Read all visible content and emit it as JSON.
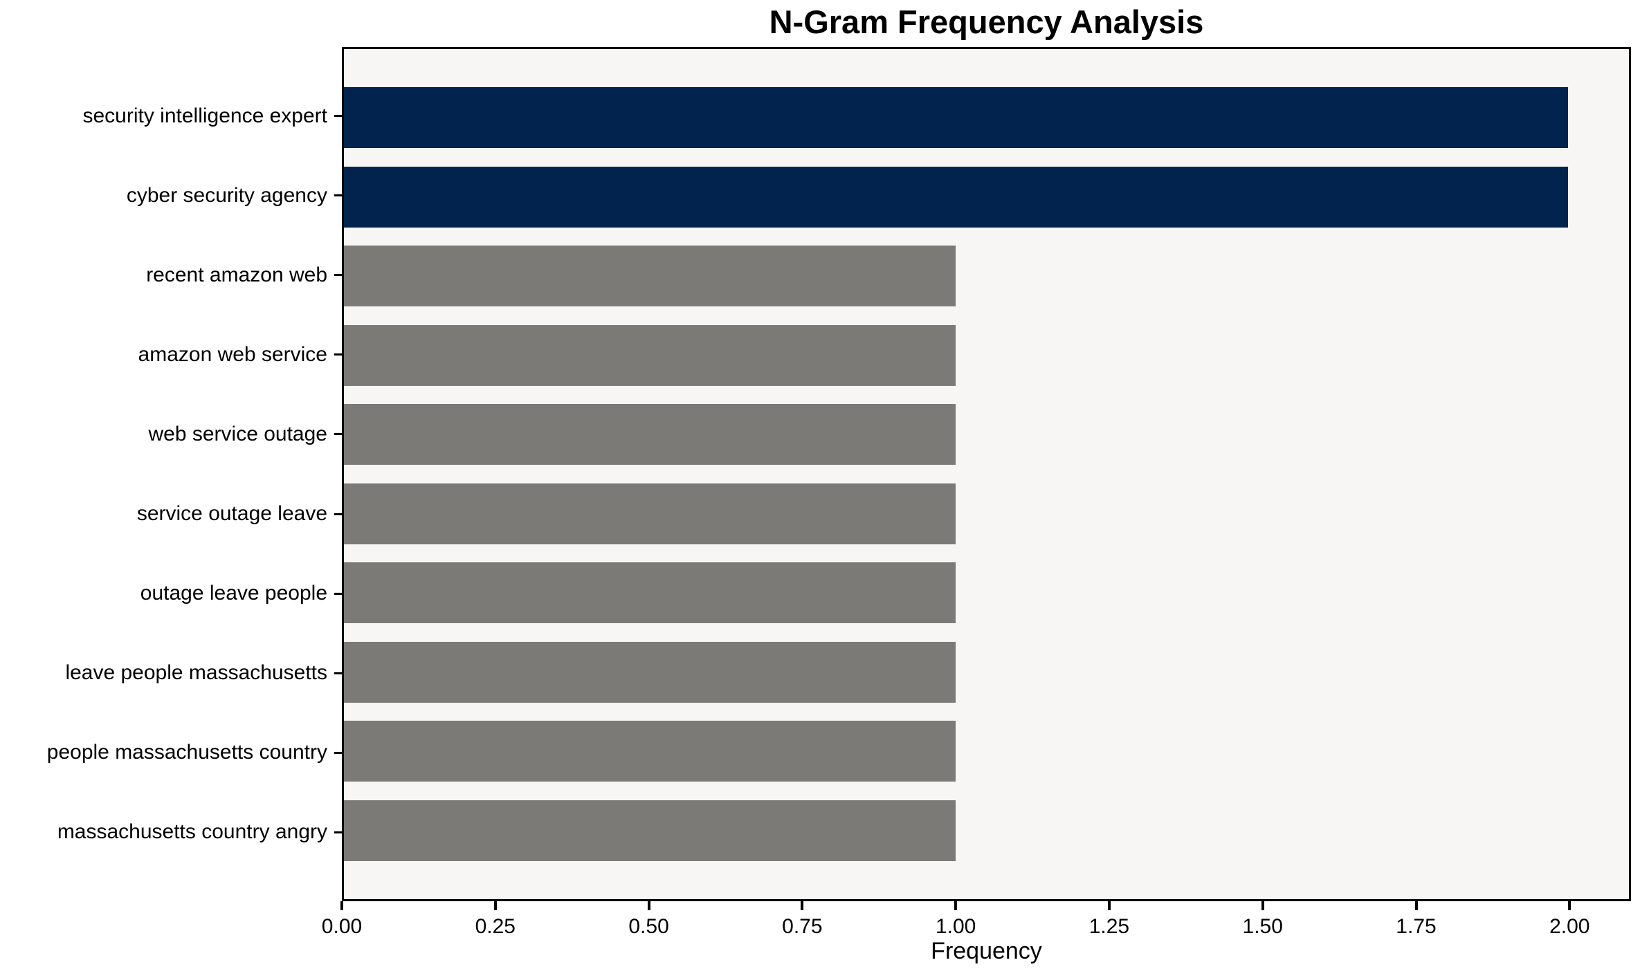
{
  "chart_data": {
    "type": "bar",
    "orientation": "horizontal",
    "title": "N-Gram Frequency Analysis",
    "xlabel": "Frequency",
    "ylabel": "",
    "categories": [
      "security intelligence expert",
      "cyber security agency",
      "recent amazon web",
      "amazon web service",
      "web service outage",
      "service outage leave",
      "outage leave people",
      "leave people massachusetts",
      "people massachusetts country",
      "massachusetts country angry"
    ],
    "values": [
      2,
      2,
      1,
      1,
      1,
      1,
      1,
      1,
      1,
      1
    ],
    "bar_colors": [
      "#02234d",
      "#02234d",
      "#7b7a77",
      "#7b7a77",
      "#7b7a77",
      "#7b7a77",
      "#7b7a77",
      "#7b7a77",
      "#7b7a77",
      "#7b7a77"
    ],
    "xlim": [
      0,
      2.1
    ],
    "xtick_values": [
      0,
      0.25,
      0.5,
      0.75,
      1.0,
      1.25,
      1.5,
      1.75,
      2.0
    ],
    "xticks": [
      "0.00",
      "0.25",
      "0.50",
      "0.75",
      "1.00",
      "1.25",
      "1.50",
      "1.75",
      "2.00"
    ],
    "grid": false,
    "legend": null,
    "colors": {
      "highlight_bar": "#02234d",
      "default_bar": "#7b7a77",
      "plot_background": "#f7f6f5",
      "figure_background": "#ffffff",
      "axis": "#000000",
      "text": "#000000"
    }
  }
}
